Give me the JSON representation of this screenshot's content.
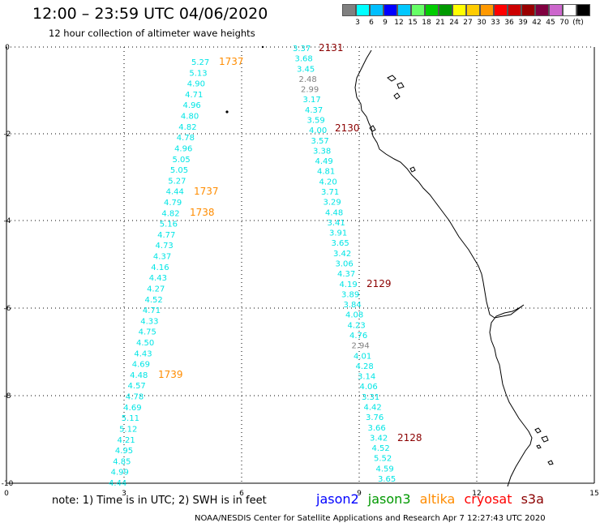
{
  "header": {
    "title": "12:00 – 23:59 UTC 04/06/2020",
    "subtitle": "12 hour collection of altimeter wave heights"
  },
  "colorbar": {
    "colors": [
      "#808080",
      "#00ffff",
      "#00bfff",
      "#0000ff",
      "#00c8ff",
      "#66ff66",
      "#00cc00",
      "#009900",
      "#ffff00",
      "#ffcc00",
      "#ff9900",
      "#ff0000",
      "#cc0000",
      "#990000",
      "#800040",
      "#cc66cc",
      "#ffffff",
      "#000000"
    ],
    "labels": [
      "3",
      "6",
      "9",
      "12",
      "15",
      "18",
      "21",
      "24",
      "27",
      "30",
      "33",
      "36",
      "39",
      "42",
      "45",
      "70",
      "(ft)"
    ]
  },
  "axes": {
    "x_ticks": [
      "0",
      "3",
      "6",
      "9",
      "12",
      "15"
    ],
    "y_ticks": [
      "0",
      "-2",
      "-4",
      "-6",
      "-8",
      "-10"
    ]
  },
  "tracks": [
    {
      "values": [
        "5.27",
        "5.13",
        "4.90",
        "4.71",
        "4.96",
        "4.80",
        "4.82",
        "4.78",
        "4.96",
        "5.05",
        "5.05",
        "5.27",
        "4.44",
        "4.79",
        "4.82",
        "5.16",
        "4.77",
        "4.73",
        "4.37",
        "4.16",
        "4.43",
        "4.27",
        "4.52",
        "4.71",
        "4.33",
        "4.75",
        "4.50",
        "4.43",
        "4.69",
        "4.48",
        "4.57",
        "4.78",
        "4.69",
        "5.11",
        "5.12",
        "4.21",
        "4.95",
        "4.85",
        "4.99",
        "4.44"
      ],
      "colors": [
        "#00e5e5",
        "#00e5e5",
        "#00e5e5",
        "#00e5e5",
        "#00e5e5",
        "#00e5e5",
        "#00e5e5",
        "#00e5e5",
        "#00e5e5",
        "#00e5e5",
        "#00e5e5",
        "#00e5e5",
        "#00e5e5",
        "#00e5e5",
        "#00e5e5",
        "#00e5e5",
        "#00e5e5",
        "#00e5e5",
        "#00e5e5",
        "#00e5e5",
        "#00e5e5",
        "#00e5e5",
        "#00e5e5",
        "#00e5e5",
        "#00e5e5",
        "#00e5e5",
        "#00e5e5",
        "#00e5e5",
        "#00e5e5",
        "#00e5e5",
        "#00e5e5",
        "#00e5e5",
        "#00e5e5",
        "#00e5e5",
        "#00e5e5",
        "#00e5e5",
        "#00e5e5",
        "#00e5e5",
        "#00e5e5",
        "#00e5e5"
      ]
    },
    {
      "values": [
        "3.37",
        "3.68",
        "3.45",
        "2.48",
        "2.99",
        "3.17",
        "4.37",
        "3.59",
        "4.00",
        "3.57",
        "3.38",
        "4.49",
        "4.81",
        "4.20",
        "3.71",
        "3.29",
        "4.48",
        "3.41",
        "3.91",
        "3.65",
        "3.42",
        "3.06",
        "4.37",
        "4.19",
        "3.89",
        "3.84",
        "4.08",
        "4.23",
        "4.76",
        "2.94",
        "4.01",
        "4.28",
        "3.14",
        "4.06",
        "3.31",
        "4.42",
        "3.76",
        "3.66",
        "3.42",
        "4.52",
        "5.52",
        "4.59",
        "3.65"
      ],
      "colors": [
        "#00e5e5",
        "#00e5e5",
        "#00e5e5",
        "#808080",
        "#808080",
        "#00e5e5",
        "#00e5e5",
        "#00e5e5",
        "#00e5e5",
        "#00e5e5",
        "#00e5e5",
        "#00e5e5",
        "#00e5e5",
        "#00e5e5",
        "#00e5e5",
        "#00e5e5",
        "#00e5e5",
        "#00e5e5",
        "#00e5e5",
        "#00e5e5",
        "#00e5e5",
        "#00e5e5",
        "#00e5e5",
        "#00e5e5",
        "#00e5e5",
        "#00e5e5",
        "#00e5e5",
        "#00e5e5",
        "#00e5e5",
        "#808080",
        "#00e5e5",
        "#00e5e5",
        "#00e5e5",
        "#00e5e5",
        "#00e5e5",
        "#00e5e5",
        "#00e5e5",
        "#00e5e5",
        "#00e5e5",
        "#00e5e5",
        "#00e5e5",
        "#00e5e5",
        "#00e5e5"
      ]
    }
  ],
  "times": [
    {
      "label": "1737",
      "color": "#ff8c00"
    },
    {
      "label": "1737",
      "color": "#ff8c00"
    },
    {
      "label": "1738",
      "color": "#ff8c00"
    },
    {
      "label": "1739",
      "color": "#ff8c00"
    },
    {
      "label": "2131",
      "color": "#8b0000"
    },
    {
      "label": "2130",
      "color": "#8b0000"
    },
    {
      "label": "2129",
      "color": "#8b0000"
    },
    {
      "label": "2128",
      "color": "#8b0000"
    }
  ],
  "note": "note: 1) Time is in UTC; 2) SWH is in feet",
  "legend": [
    {
      "label": "jason2",
      "color": "#0000ff"
    },
    {
      "label": "jason3",
      "color": "#009900"
    },
    {
      "label": "altika",
      "color": "#ff8c00"
    },
    {
      "label": "cryosat",
      "color": "#ff0000"
    },
    {
      "label": "s3a",
      "color": "#8b0000"
    }
  ],
  "credit": "NOAA/NESDIS Center for Satellite Applications and Research   Apr  7 12:27:43 UTC 2020"
}
